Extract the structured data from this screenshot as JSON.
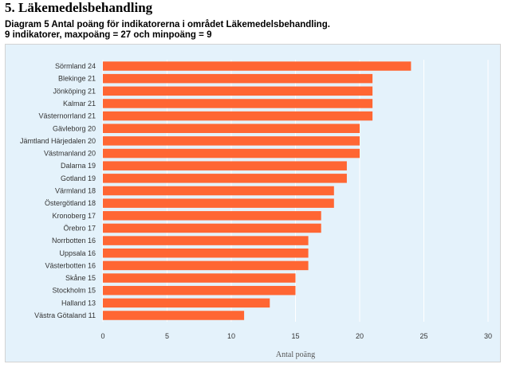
{
  "heading": "5. Läkemedelsbehandling",
  "subtitle_line1": "Diagram 5 Antal poäng för indikatorerna i området Läkemedelsbehandling.",
  "subtitle_line2": "9 indikatorer, maxpoäng = 27 och minpoäng = 9",
  "colors": {
    "bar": "#ff6633",
    "panel": "#e4f2fb",
    "grid": "#ffffff"
  },
  "chart_data": {
    "type": "bar",
    "orientation": "horizontal",
    "categories": [
      "Sörmland 24",
      "Blekinge 21",
      "Jönköping 21",
      "Kalmar  21",
      "Västernorrland 21",
      "Gävleborg 20",
      "Jämtland Härjedalen 20",
      "Västmanland 20",
      "Dalarna 19",
      "Gotland 19",
      "Värmland 18",
      "Östergötland 18",
      "Kronoberg 17",
      "Örebro 17",
      "Norrbotten 16",
      "Uppsala 16",
      "Västerbotten 16",
      "Skåne 15",
      "Stockholm 15",
      "Halland 13",
      "Västra Götaland 11"
    ],
    "values": [
      24,
      21,
      21,
      21,
      21,
      20,
      20,
      20,
      19,
      19,
      18,
      18,
      17,
      17,
      16,
      16,
      16,
      15,
      15,
      13,
      11
    ],
    "xlabel": "Antal poäng",
    "xlim": [
      0,
      30
    ],
    "xticks": [
      0,
      5,
      10,
      15,
      20,
      25,
      30
    ],
    "grid": true
  }
}
